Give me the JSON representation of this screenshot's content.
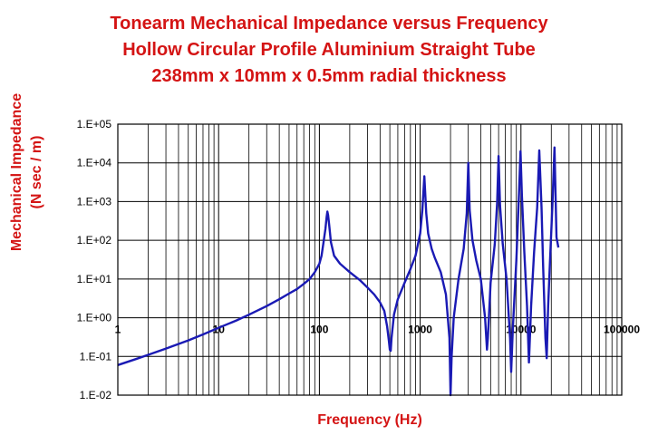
{
  "colors": {
    "title": "#d41414",
    "curve": "#1a1ab4",
    "grid": "#000000",
    "text": "#000000"
  },
  "chart_data": {
    "type": "line",
    "title": [
      "Tonearm Mechanical Impedance versus Frequency",
      "Hollow Circular Profile Aluminium Straight Tube",
      "238mm x 10mm x 0.5mm radial thickness"
    ],
    "xlabel": "Frequency (Hz)",
    "ylabel": [
      "Mechanical Impedance",
      "(N sec / m)"
    ],
    "x_scale": "log",
    "y_scale": "log",
    "xlim": [
      1,
      100000
    ],
    "ylim": [
      0.01,
      100000
    ],
    "grid": true,
    "legend": "none",
    "x_ticks": [
      {
        "value": 1,
        "label": "1"
      },
      {
        "value": 10,
        "label": "10"
      },
      {
        "value": 100,
        "label": "100"
      },
      {
        "value": 1000,
        "label": "1000"
      },
      {
        "value": 10000,
        "label": "10000"
      },
      {
        "value": 100000,
        "label": "100000"
      }
    ],
    "y_ticks": [
      {
        "value": 0.01,
        "label": "1.E-02"
      },
      {
        "value": 0.1,
        "label": "1.E-01"
      },
      {
        "value": 1,
        "label": "1.E+00"
      },
      {
        "value": 10,
        "label": "1.E+01"
      },
      {
        "value": 100,
        "label": "1.E+02"
      },
      {
        "value": 1000,
        "label": "1.E+03"
      },
      {
        "value": 10000,
        "label": "1.E+04"
      },
      {
        "value": 100000,
        "label": "1.E+05"
      }
    ],
    "series": [
      {
        "points": [
          [
            1,
            0.06
          ],
          [
            1.5,
            0.085
          ],
          [
            2,
            0.11
          ],
          [
            3,
            0.16
          ],
          [
            5,
            0.26
          ],
          [
            7,
            0.37
          ],
          [
            10,
            0.55
          ],
          [
            15,
            0.85
          ],
          [
            20,
            1.2
          ],
          [
            30,
            2
          ],
          [
            40,
            3
          ],
          [
            50,
            4.2
          ],
          [
            60,
            5.5
          ],
          [
            70,
            7.5
          ],
          [
            80,
            10
          ],
          [
            90,
            15
          ],
          [
            100,
            25
          ],
          [
            105,
            40
          ],
          [
            110,
            90
          ],
          [
            115,
            200
          ],
          [
            118,
            400
          ],
          [
            120,
            550
          ],
          [
            122,
            450
          ],
          [
            125,
            250
          ],
          [
            130,
            90
          ],
          [
            140,
            40
          ],
          [
            160,
            25
          ],
          [
            200,
            15
          ],
          [
            250,
            9.5
          ],
          [
            300,
            6
          ],
          [
            350,
            4
          ],
          [
            400,
            2.5
          ],
          [
            440,
            1.5
          ],
          [
            470,
            0.6
          ],
          [
            490,
            0.25
          ],
          [
            500,
            0.15
          ],
          [
            510,
            0.14
          ],
          [
            520,
            0.3
          ],
          [
            550,
            1.2
          ],
          [
            600,
            3
          ],
          [
            700,
            8
          ],
          [
            800,
            18
          ],
          [
            900,
            40
          ],
          [
            1000,
            150
          ],
          [
            1050,
            600
          ],
          [
            1100,
            4500
          ],
          [
            1150,
            500
          ],
          [
            1200,
            150
          ],
          [
            1300,
            60
          ],
          [
            1400,
            35
          ],
          [
            1600,
            15
          ],
          [
            1800,
            4
          ],
          [
            1950,
            0.3
          ],
          [
            2000,
            0.01
          ],
          [
            2050,
            0.1
          ],
          [
            2150,
            1
          ],
          [
            2400,
            10
          ],
          [
            2700,
            60
          ],
          [
            2900,
            500
          ],
          [
            3000,
            10000
          ],
          [
            3100,
            600
          ],
          [
            3300,
            100
          ],
          [
            3600,
            30
          ],
          [
            4000,
            10
          ],
          [
            4400,
            1
          ],
          [
            4600,
            0.15
          ],
          [
            4700,
            0.3
          ],
          [
            5000,
            8
          ],
          [
            5500,
            80
          ],
          [
            5800,
            900
          ],
          [
            6000,
            15000
          ],
          [
            6200,
            800
          ],
          [
            6600,
            80
          ],
          [
            7200,
            10
          ],
          [
            7800,
            0.3
          ],
          [
            8000,
            0.04
          ],
          [
            8300,
            0.5
          ],
          [
            9000,
            30
          ],
          [
            9600,
            2000
          ],
          [
            9900,
            20000
          ],
          [
            10200,
            1500
          ],
          [
            10800,
            50
          ],
          [
            11500,
            2
          ],
          [
            12000,
            0.07
          ],
          [
            12600,
            2
          ],
          [
            13500,
            50
          ],
          [
            14500,
            700
          ],
          [
            15200,
            21000
          ],
          [
            16000,
            700
          ],
          [
            16600,
            20
          ],
          [
            17500,
            0.3
          ],
          [
            18000,
            0.09
          ],
          [
            18600,
            2
          ],
          [
            19500,
            40
          ],
          [
            20500,
            800
          ],
          [
            21500,
            25000
          ],
          [
            22500,
            120
          ],
          [
            23500,
            65
          ]
        ]
      }
    ]
  }
}
